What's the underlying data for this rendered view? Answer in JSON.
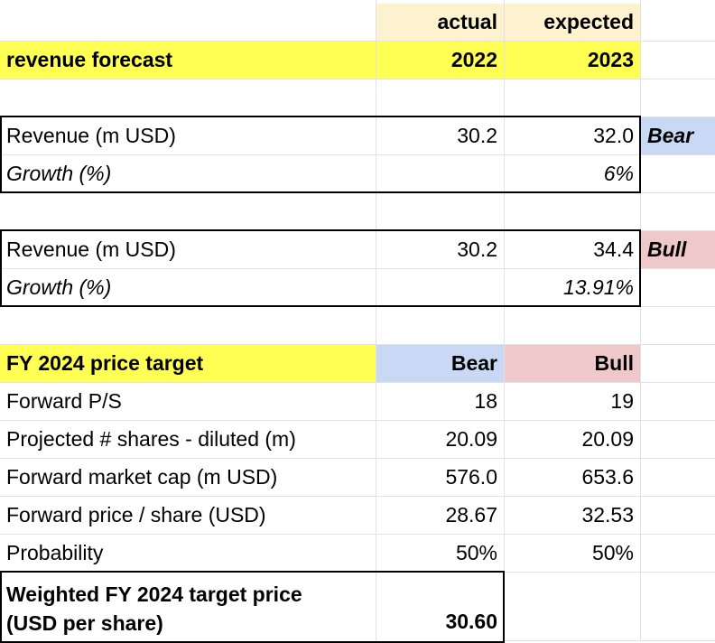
{
  "header": {
    "actual_label": "actual",
    "expected_label": "expected"
  },
  "forecast_header": {
    "title": "revenue forecast",
    "year_actual": "2022",
    "year_expected": "2023"
  },
  "bear_scenario": {
    "revenue_label": "Revenue (m USD)",
    "revenue_2022": "30.2",
    "revenue_2023": "32.0",
    "tag": "Bear",
    "growth_label": "Growth (%)",
    "growth_2023": "6%"
  },
  "bull_scenario": {
    "revenue_label": "Revenue (m USD)",
    "revenue_2022": "30.2",
    "revenue_2023": "34.4",
    "tag": "Bull",
    "growth_label": "Growth (%)",
    "growth_2023": "13.91%"
  },
  "price_target": {
    "title": "FY 2024 price target",
    "col_bear": "Bear",
    "col_bull": "Bull",
    "rows": [
      {
        "label": "Forward P/S",
        "bear": "18",
        "bull": "19"
      },
      {
        "label": "Projected # shares - diluted (m)",
        "bear": "20.09",
        "bull": "20.09"
      },
      {
        "label": "Forward market cap (m USD)",
        "bear": "576.0",
        "bull": "653.6"
      },
      {
        "label": "Forward price / share (USD)",
        "bear": "28.67",
        "bull": "32.53"
      },
      {
        "label": "Probability",
        "bear": "50%",
        "bull": "50%"
      }
    ],
    "weighted_label_line1": "Weighted FY 2024 target price",
    "weighted_label_line2": "(USD per share)",
    "weighted_value": "30.60"
  },
  "colors": {
    "yellow_highlight": "#ffff54",
    "cream_header": "#fdf2cf",
    "bear_blue": "#c9d9f5",
    "bull_pink": "#efc9c9",
    "gridline": "#e2e2e2"
  }
}
